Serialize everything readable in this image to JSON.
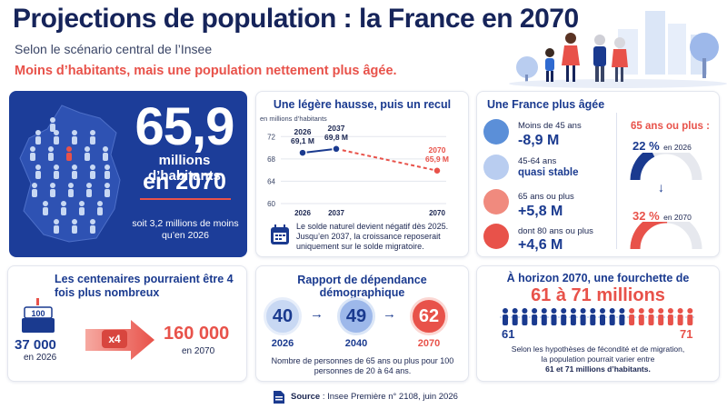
{
  "header": {
    "title": "Projections de population : la France en 2070",
    "subtitle": "Selon le scénario central de l’Insee",
    "tagline": "Moins d’habitants, mais une population nettement plus âgée."
  },
  "hero": {
    "big_number": "65,9",
    "line1": "millions d’habitants",
    "line2": "en 2070",
    "note": "soit 3,2 millions de moins qu’en 2026"
  },
  "trend": {
    "title": "Une légère hausse, puis un recul",
    "unit": "en millions d’habitants",
    "points": [
      {
        "year": "2026",
        "label": "69,1 M"
      },
      {
        "year": "2037",
        "label": "69,8 M"
      },
      {
        "year": "2070",
        "label": "65,9 M"
      }
    ],
    "note": "Le solde naturel devient négatif dès 2025. Jusqu’en 2037, la croissance reposerait uniquement sur le solde migratoire."
  },
  "chart_data": {
    "type": "line",
    "title": "Une légère hausse, puis un recul",
    "ylabel": "en millions d’habitants",
    "x": [
      "2026",
      "2037",
      "2070"
    ],
    "y_ticks": [
      60,
      64,
      68,
      72
    ],
    "ylim": [
      60,
      74
    ],
    "series": [
      {
        "values": [
          69.1,
          69.8,
          65.9
        ]
      }
    ]
  },
  "aging": {
    "title": "Une France plus âgée",
    "groups": [
      {
        "label": "Moins de 45 ans",
        "value": "-8,9 M"
      },
      {
        "label": "45-64 ans",
        "value": "quasi stable"
      },
      {
        "label": "65 ans ou plus",
        "value": "+5,8 M"
      },
      {
        "label": "dont 80 ans ou plus",
        "value": "+4,6 M"
      }
    ],
    "share_title": "65 ans ou plus :",
    "share_2026": "22 %",
    "share_2026_year": "en 2026",
    "share_2026_fraction": 0.22,
    "share_2070": "32 %",
    "share_2070_year": "en 2070",
    "share_2070_fraction": 0.32,
    "arrow": "↓"
  },
  "centenarians": {
    "title": "Les centenaires pourraient être 4 fois plus nombreux",
    "cake_number": "100",
    "from_value": "37 000",
    "from_year": "en 2026",
    "multiplier": "x4",
    "to_value": "160 000",
    "to_year": "en 2070"
  },
  "dependency": {
    "title": "Rapport de dépendance démographique",
    "items": [
      {
        "value": "40",
        "year": "2026"
      },
      {
        "value": "49",
        "year": "2040"
      },
      {
        "value": "62",
        "year": "2070"
      }
    ],
    "note": "Nombre de personnes de 65 ans ou plus pour 100 personnes de 20 à 64 ans."
  },
  "range": {
    "title": "À horizon 2070, une fourchette de",
    "headline": "61 à 71 millions",
    "low": "61",
    "high": "71",
    "note_line1": "Selon les hypothèses de fécondité et de migration,",
    "note_line2": "la population pourrait varier entre",
    "note_line3": "61 et 71 millions d’habitants."
  },
  "footer": {
    "source_label": "Source",
    "source_text": " : Insee Première n° 2108, juin 2026"
  },
  "colors": {
    "navy": "#1a3a8f",
    "dark_navy": "#16245a",
    "red": "#e8524a",
    "light_blue": "#b9cdf0"
  }
}
